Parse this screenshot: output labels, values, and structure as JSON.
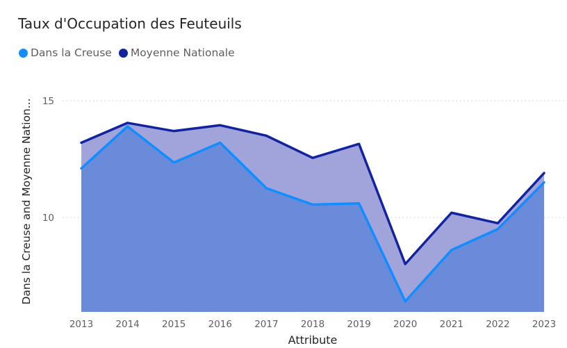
{
  "title": "Taux d'Occupation des Feuteuils",
  "legend": [
    {
      "label": "Dans la Creuse",
      "color": "#118dff"
    },
    {
      "label": "Moyenne Nationale",
      "color": "#12239e"
    }
  ],
  "ylabel": "Dans la Creuse and Moyenne Nation...",
  "xlabel": "Attribute",
  "colors": {
    "area_national": "#a0a4da",
    "area_creuse": "#6a8bd9",
    "grid": "#c8c6c4"
  },
  "chart_data": {
    "type": "area",
    "x": [
      "2013",
      "2014",
      "2015",
      "2016",
      "2017",
      "2018",
      "2019",
      "2020",
      "2021",
      "2022",
      "2023"
    ],
    "series": [
      {
        "name": "Dans la Creuse",
        "values": [
          12.1,
          13.9,
          12.35,
          13.2,
          11.25,
          10.55,
          10.6,
          6.4,
          8.6,
          9.5,
          11.5
        ]
      },
      {
        "name": "Moyenne Nationale",
        "values": [
          13.2,
          14.05,
          13.7,
          13.95,
          13.5,
          12.55,
          13.15,
          8.0,
          10.2,
          9.75,
          11.9
        ]
      }
    ],
    "yticks": [
      10,
      15
    ],
    "ylim": [
      5.95,
      15
    ],
    "grid": true,
    "legend_position": "top-left"
  }
}
